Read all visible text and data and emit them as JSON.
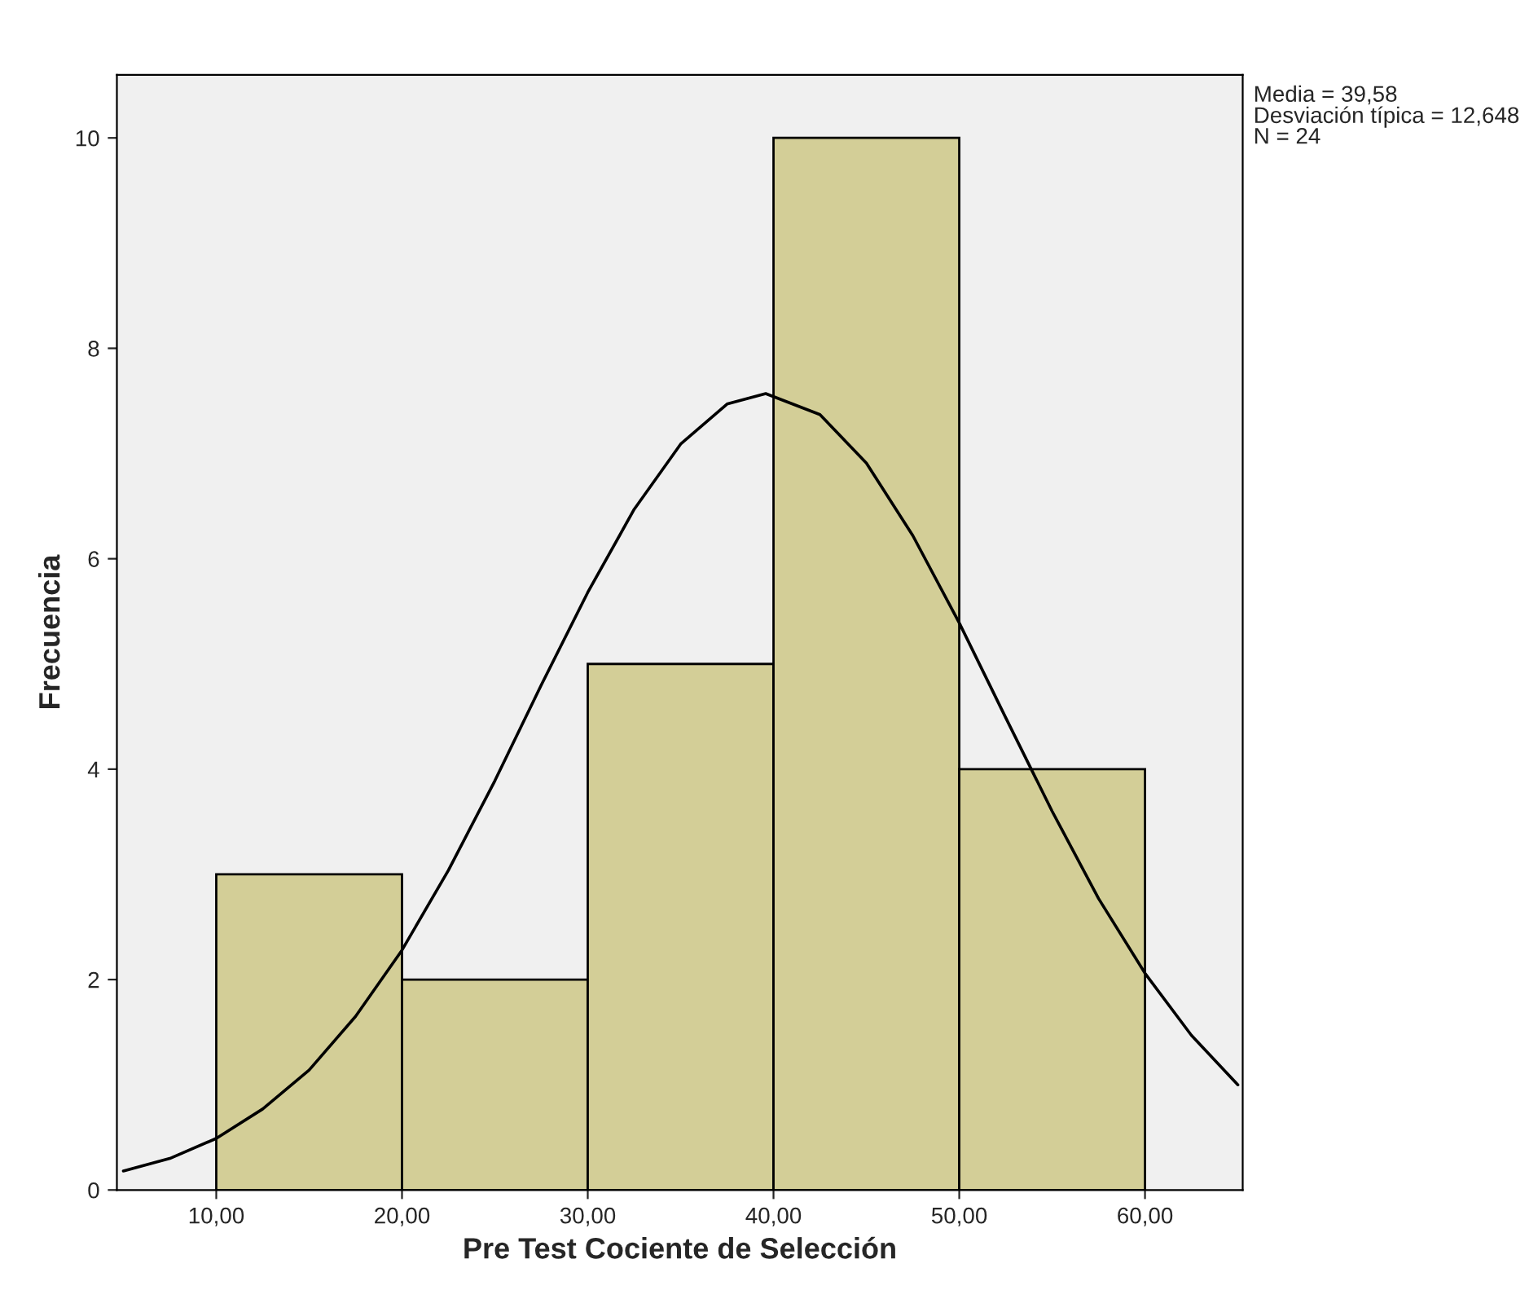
{
  "chart_data": {
    "type": "histogram",
    "xlabel": "Pre Test Cociente de Selección",
    "ylabel": "Frecuencia",
    "bins": [
      10,
      20,
      30,
      40,
      50,
      60
    ],
    "values": [
      3,
      2,
      5,
      10,
      4
    ],
    "color": "#d3ce97",
    "series": [
      {
        "type": "line",
        "color": "#000000",
        "x": [
          5,
          7.5,
          10,
          12.5,
          15,
          17.5,
          20,
          22.5,
          25,
          27.5,
          30,
          32.5,
          35,
          37.5,
          39.58,
          42.5,
          45,
          47.5,
          50,
          52.5,
          55,
          57.5,
          60,
          62.5,
          65
        ],
        "values": [
          0.18,
          0.3,
          0.49,
          0.77,
          1.14,
          1.65,
          2.28,
          3.04,
          3.89,
          4.8,
          5.68,
          6.47,
          7.09,
          7.47,
          7.57,
          7.37,
          6.91,
          6.22,
          5.39,
          4.49,
          3.6,
          2.77,
          2.06,
          1.47,
          1.0
        ]
      }
    ],
    "xlim": [
      4.65,
      65.26
    ],
    "ylim": [
      0,
      10.6
    ],
    "xticks": [
      {
        "value": 10,
        "label": "10,00"
      },
      {
        "value": 20,
        "label": "20,00"
      },
      {
        "value": 30,
        "label": "30,00"
      },
      {
        "value": 40,
        "label": "40,00"
      },
      {
        "value": 50,
        "label": "50,00"
      },
      {
        "value": 60,
        "label": "60,00"
      }
    ],
    "yticks": [
      0,
      2,
      4,
      6,
      8,
      10
    ],
    "annotations": [
      "Media = 39,58",
      "Desviación típica = 12,648",
      "N = 24"
    ]
  }
}
